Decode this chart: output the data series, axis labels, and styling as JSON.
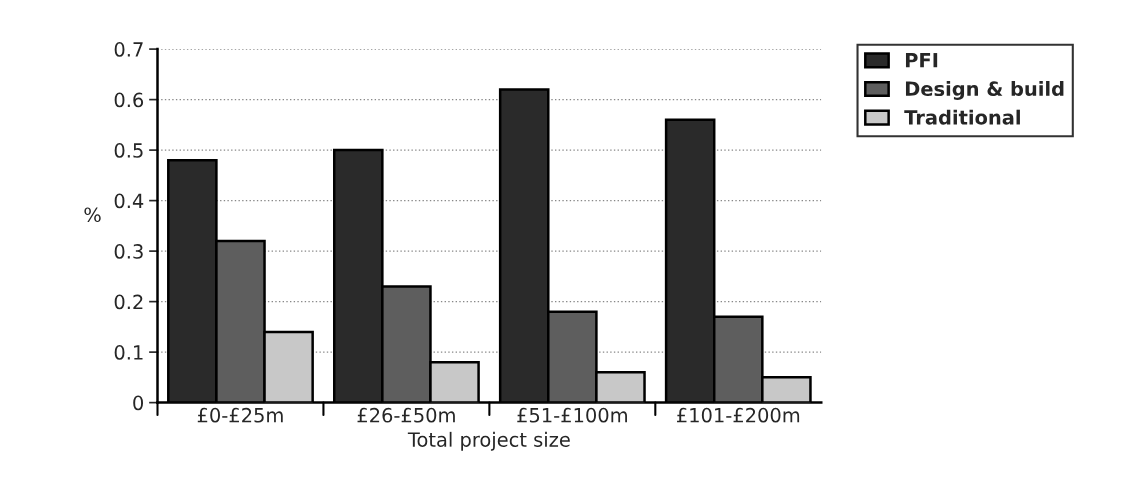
{
  "chart_data": {
    "type": "bar",
    "xlabel": "Total project size",
    "ylabel": "%",
    "categories": [
      "£0-£25m",
      "£26-£50m",
      "£51-£100m",
      "£101-£200m"
    ],
    "series": [
      {
        "name": "PFI",
        "color": "#2a2a2a",
        "values": [
          0.48,
          0.5,
          0.62,
          0.56
        ]
      },
      {
        "name": "Design & build",
        "color": "#5e5e5e",
        "values": [
          0.32,
          0.23,
          0.18,
          0.17
        ]
      },
      {
        "name": "Traditional",
        "color": "#c8c8c8",
        "values": [
          0.14,
          0.08,
          0.06,
          0.05
        ]
      }
    ],
    "ylim": [
      0,
      0.7
    ],
    "yticks": [
      0,
      0.1,
      0.2,
      0.3,
      0.4,
      0.5,
      0.6,
      0.7
    ],
    "grid": "y",
    "legend": "top right"
  }
}
